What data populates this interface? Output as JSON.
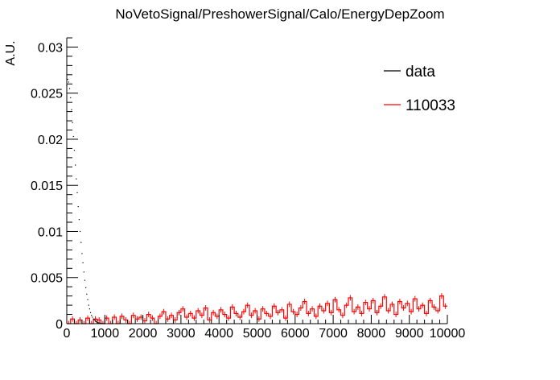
{
  "chart_data": {
    "type": "line",
    "title": "NoVetoSignal/PreshowerSignal/Calo/EnergyDepZoom",
    "xlabel": "",
    "ylabel": "A.U.",
    "xlim": [
      0,
      10000
    ],
    "ylim": [
      0,
      0.031
    ],
    "x_ticks": [
      "0",
      "1000",
      "2000",
      "3000",
      "4000",
      "5000",
      "6000",
      "7000",
      "8000",
      "9000",
      "10000"
    ],
    "y_ticks": [
      "0",
      "0.005",
      "0.01",
      "0.015",
      "0.02",
      "0.025",
      "0.03"
    ],
    "grid": false,
    "legend_position": "top-right",
    "colors": {
      "data": "#000000",
      "mc": "#ff0000",
      "axis": "#000000"
    },
    "series": [
      {
        "name": "data",
        "style": "points",
        "color": "#000000",
        "x": [
          0,
          25,
          50,
          75,
          100,
          125,
          150,
          175,
          200,
          225,
          250,
          275,
          300,
          325,
          350,
          375,
          400,
          425,
          450,
          475,
          500,
          525,
          550,
          575,
          600,
          625,
          650,
          675,
          700,
          725,
          750,
          775,
          800,
          825,
          850,
          875,
          900,
          925,
          950,
          975,
          1000
        ],
        "y": [
          0.0258,
          0.0265,
          0.0262,
          0.0255,
          0.0245,
          0.0232,
          0.0218,
          0.0203,
          0.0188,
          0.0172,
          0.0157,
          0.0142,
          0.0127,
          0.0113,
          0.01,
          0.0088,
          0.0076,
          0.0066,
          0.0056,
          0.0047,
          0.0039,
          0.0032,
          0.0026,
          0.002,
          0.0016,
          0.0012,
          0.0009,
          0.0007,
          0.0005,
          0.0004,
          0.0003,
          0.0002,
          0.00015,
          0.0001,
          7e-05,
          5e-05,
          3e-05,
          2e-05,
          1e-05,
          1e-05,
          0.0
        ]
      },
      {
        "name": "110033",
        "style": "histogram",
        "color": "#ff0000",
        "x_start": 0,
        "bin_width": 100,
        "values": [
          0.0,
          0.0005,
          0.0,
          0.0004,
          0.0,
          0.0006,
          0.0,
          0.0005,
          0.0004,
          0.0,
          0.0006,
          0.0,
          0.0007,
          0.0,
          0.0008,
          0.0004,
          0.0,
          0.0009,
          0.0005,
          0.0007,
          0.0003,
          0.001,
          0.0006,
          0.0,
          0.0008,
          0.0013,
          0.0005,
          0.0009,
          0.0004,
          0.0012,
          0.0016,
          0.0007,
          0.0011,
          0.0006,
          0.0014,
          0.0009,
          0.0017,
          0.0004,
          0.0012,
          0.0008,
          0.0015,
          0.001,
          0.0006,
          0.0018,
          0.0011,
          0.0007,
          0.0013,
          0.002,
          0.0009,
          0.0014,
          0.0005,
          0.0016,
          0.0011,
          0.0008,
          0.0019,
          0.0012,
          0.0015,
          0.0006,
          0.0021,
          0.0013,
          0.001,
          0.0017,
          0.0024,
          0.0011,
          0.0016,
          0.0008,
          0.0019,
          0.0014,
          0.0022,
          0.0012,
          0.0026,
          0.0015,
          0.0009,
          0.002,
          0.0028,
          0.0013,
          0.0018,
          0.0011,
          0.0023,
          0.0016,
          0.0025,
          0.0012,
          0.0019,
          0.0029,
          0.0014,
          0.0021,
          0.001,
          0.0024,
          0.0017,
          0.0022,
          0.0013,
          0.0027,
          0.0016,
          0.002,
          0.0011,
          0.0025,
          0.0018,
          0.0014,
          0.003,
          0.0019
        ]
      }
    ]
  }
}
